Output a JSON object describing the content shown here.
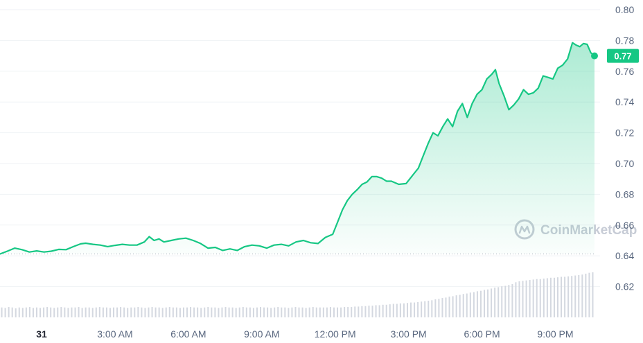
{
  "chart_data": {
    "type": "area",
    "ylim": [
      0.6,
      0.8
    ],
    "y_ticks": [
      "0.80",
      "0.78",
      "0.76",
      "0.74",
      "0.72",
      "0.70",
      "0.68",
      "0.66",
      "0.64",
      "0.62"
    ],
    "x_ticks": [
      "31",
      "3:00 AM",
      "6:00 AM",
      "9:00 AM",
      "12:00 PM",
      "3:00 PM",
      "6:00 PM",
      "9:00 PM"
    ],
    "x_tick_hours": [
      0,
      3,
      6,
      9,
      12,
      15,
      18,
      21
    ],
    "xlim_hours": [
      -1.7,
      22.6
    ],
    "open_price": 0.6412,
    "current_price": 0.77,
    "current_price_label": "0.77",
    "grid": true,
    "line_color": "#16c784",
    "price_tag_color": "#16c784",
    "volume_color": "#d4d8e0",
    "series": [
      {
        "points": [
          [
            -1.7,
            0.6412
          ],
          [
            -1.4,
            0.643
          ],
          [
            -1.1,
            0.645
          ],
          [
            -0.8,
            0.644
          ],
          [
            -0.5,
            0.6425
          ],
          [
            -0.2,
            0.6432
          ],
          [
            0.1,
            0.6425
          ],
          [
            0.4,
            0.643
          ],
          [
            0.7,
            0.6442
          ],
          [
            1.0,
            0.644
          ],
          [
            1.3,
            0.646
          ],
          [
            1.6,
            0.6478
          ],
          [
            1.8,
            0.6482
          ],
          [
            2.1,
            0.6475
          ],
          [
            2.4,
            0.647
          ],
          [
            2.7,
            0.646
          ],
          [
            3.0,
            0.6468
          ],
          [
            3.3,
            0.6475
          ],
          [
            3.6,
            0.647
          ],
          [
            3.9,
            0.647
          ],
          [
            4.2,
            0.649
          ],
          [
            4.4,
            0.6525
          ],
          [
            4.6,
            0.65
          ],
          [
            4.8,
            0.651
          ],
          [
            5.0,
            0.649
          ],
          [
            5.3,
            0.65
          ],
          [
            5.6,
            0.651
          ],
          [
            5.9,
            0.6515
          ],
          [
            6.2,
            0.65
          ],
          [
            6.5,
            0.648
          ],
          [
            6.8,
            0.645
          ],
          [
            7.1,
            0.6455
          ],
          [
            7.4,
            0.6435
          ],
          [
            7.7,
            0.6445
          ],
          [
            8.0,
            0.6435
          ],
          [
            8.3,
            0.646
          ],
          [
            8.6,
            0.647
          ],
          [
            8.9,
            0.6465
          ],
          [
            9.2,
            0.645
          ],
          [
            9.5,
            0.647
          ],
          [
            9.8,
            0.6475
          ],
          [
            10.1,
            0.6465
          ],
          [
            10.4,
            0.649
          ],
          [
            10.7,
            0.65
          ],
          [
            11.0,
            0.6485
          ],
          [
            11.3,
            0.648
          ],
          [
            11.6,
            0.652
          ],
          [
            11.9,
            0.654
          ],
          [
            12.1,
            0.662
          ],
          [
            12.3,
            0.67
          ],
          [
            12.5,
            0.676
          ],
          [
            12.7,
            0.68
          ],
          [
            12.9,
            0.683
          ],
          [
            13.1,
            0.6865
          ],
          [
            13.3,
            0.688
          ],
          [
            13.5,
            0.6915
          ],
          [
            13.7,
            0.6915
          ],
          [
            13.9,
            0.6905
          ],
          [
            14.1,
            0.6885
          ],
          [
            14.3,
            0.6885
          ],
          [
            14.6,
            0.6865
          ],
          [
            14.9,
            0.687
          ],
          [
            15.2,
            0.693
          ],
          [
            15.4,
            0.697
          ],
          [
            15.6,
            0.705
          ],
          [
            15.8,
            0.713
          ],
          [
            16.0,
            0.72
          ],
          [
            16.2,
            0.718
          ],
          [
            16.4,
            0.724
          ],
          [
            16.6,
            0.729
          ],
          [
            16.8,
            0.724
          ],
          [
            17.0,
            0.734
          ],
          [
            17.2,
            0.739
          ],
          [
            17.4,
            0.73
          ],
          [
            17.6,
            0.739
          ],
          [
            17.8,
            0.745
          ],
          [
            18.0,
            0.748
          ],
          [
            18.2,
            0.755
          ],
          [
            18.4,
            0.758
          ],
          [
            18.55,
            0.761
          ],
          [
            18.7,
            0.752
          ],
          [
            18.9,
            0.744
          ],
          [
            19.1,
            0.735
          ],
          [
            19.3,
            0.738
          ],
          [
            19.5,
            0.742
          ],
          [
            19.7,
            0.748
          ],
          [
            19.9,
            0.745
          ],
          [
            20.1,
            0.746
          ],
          [
            20.3,
            0.749
          ],
          [
            20.5,
            0.757
          ],
          [
            20.7,
            0.756
          ],
          [
            20.9,
            0.755
          ],
          [
            21.1,
            0.762
          ],
          [
            21.3,
            0.764
          ],
          [
            21.5,
            0.768
          ],
          [
            21.7,
            0.7785
          ],
          [
            21.85,
            0.777
          ],
          [
            22.0,
            0.776
          ],
          [
            22.15,
            0.778
          ],
          [
            22.3,
            0.7775
          ],
          [
            22.45,
            0.772
          ],
          [
            22.6,
            0.77
          ]
        ]
      }
    ],
    "volume": [
      0.22,
      0.21,
      0.23,
      0.22,
      0.2,
      0.22,
      0.21,
      0.22,
      0.23,
      0.21,
      0.22,
      0.21,
      0.22,
      0.23,
      0.22,
      0.21,
      0.22,
      0.23,
      0.22,
      0.21,
      0.22,
      0.22,
      0.23,
      0.21,
      0.22,
      0.22,
      0.21,
      0.22,
      0.23,
      0.22,
      0.22,
      0.21,
      0.22,
      0.22,
      0.23,
      0.22,
      0.21,
      0.22,
      0.22,
      0.23,
      0.22,
      0.21,
      0.22,
      0.23,
      0.22,
      0.22,
      0.21,
      0.22,
      0.23,
      0.22,
      0.22,
      0.21,
      0.22,
      0.22,
      0.23,
      0.22,
      0.22,
      0.21,
      0.22,
      0.23,
      0.22,
      0.22,
      0.21,
      0.22,
      0.23,
      0.22,
      0.22,
      0.21,
      0.22,
      0.23,
      0.22,
      0.22,
      0.21,
      0.22,
      0.23,
      0.22,
      0.22,
      0.21,
      0.22,
      0.23,
      0.22,
      0.22,
      0.21,
      0.22,
      0.23,
      0.22,
      0.22,
      0.21,
      0.22,
      0.23,
      0.22,
      0.22,
      0.22,
      0.22,
      0.23,
      0.22,
      0.22,
      0.22,
      0.23,
      0.23,
      0.23,
      0.24,
      0.24,
      0.25,
      0.25,
      0.26,
      0.26,
      0.27,
      0.27,
      0.28,
      0.28,
      0.29,
      0.3,
      0.3,
      0.31,
      0.31,
      0.32,
      0.33,
      0.33,
      0.34,
      0.35,
      0.36,
      0.37,
      0.38,
      0.4,
      0.41,
      0.43,
      0.44,
      0.46,
      0.47,
      0.49,
      0.5,
      0.52,
      0.53,
      0.55,
      0.56,
      0.58,
      0.59,
      0.61,
      0.62,
      0.64,
      0.66,
      0.67,
      0.69,
      0.7,
      0.72,
      0.74,
      0.78,
      0.8,
      0.81,
      0.82,
      0.83,
      0.84,
      0.85,
      0.85,
      0.86,
      0.87,
      0.88,
      0.88,
      0.89,
      0.9,
      0.9,
      0.91,
      0.92,
      0.93,
      0.94,
      0.95,
      0.97,
      0.99,
      1.0
    ]
  },
  "watermark": {
    "text": "CoinMarketCap",
    "icon": "coinmarketcap-logo-icon"
  }
}
